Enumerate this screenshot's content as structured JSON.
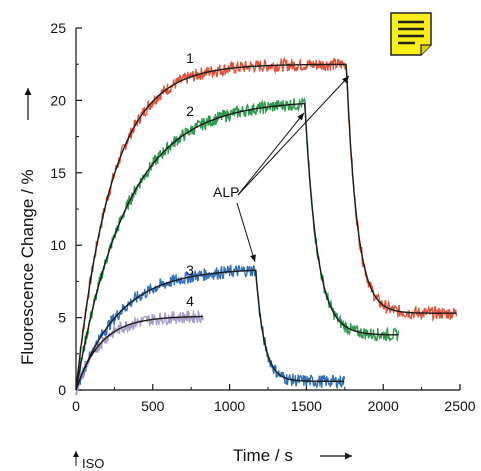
{
  "chart_data": {
    "type": "line",
    "xlabel": "Time / s",
    "ylabel": "Fluorescence Change / %",
    "xlim": [
      0,
      2500
    ],
    "ylim": [
      0,
      25
    ],
    "xticks": [
      0,
      500,
      1000,
      1500,
      2000,
      2500
    ],
    "yticks": [
      0,
      5,
      10,
      15,
      20,
      25
    ],
    "grid": false,
    "legend": "none",
    "annotations": {
      "alp_label": "ALP",
      "iso_label": "ISO"
    },
    "series": [
      {
        "label": "1",
        "color": "#e0533a",
        "fit_color": "#1a1a1a",
        "plateau": 22.5,
        "tau": 230,
        "stop": 1760,
        "final": 5.3,
        "decay_tau": 70,
        "end": 2480
      },
      {
        "label": "2",
        "color": "#2e9a4e",
        "fit_color": "#1a1a1a",
        "plateau": 20.0,
        "tau": 330,
        "stop": 1490,
        "final": 3.8,
        "decay_tau": 80,
        "end": 2100
      },
      {
        "label": "3",
        "color": "#2f6fb8",
        "fit_color": "#1a1a1a",
        "plateau": 8.4,
        "tau": 280,
        "stop": 1170,
        "final": 0.6,
        "decay_tau": 55,
        "end": 1750
      },
      {
        "label": "4",
        "color": "#a89cc8",
        "fit_color": "#1a1a1a",
        "plateau": 5.1,
        "tau": 160,
        "stop": 830,
        "final": 5.1,
        "decay_tau": 1,
        "end": 830
      }
    ]
  },
  "icons": {
    "note": "sticky-note-icon"
  }
}
